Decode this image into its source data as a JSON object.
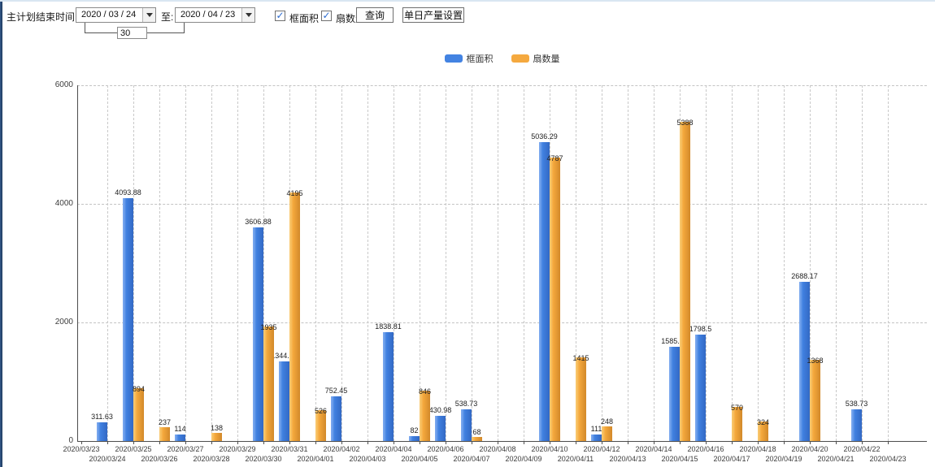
{
  "toolbar": {
    "start_label": "主计划结束时间:",
    "from_date": "2020 / 03 / 24",
    "to_label": "至:",
    "to_date": "2020 / 04 / 23",
    "interval_days": "30",
    "checkboxes": [
      {
        "label": "框面积",
        "checked": true,
        "check_glyph": "✓"
      },
      {
        "label": "扇数量",
        "checked": true,
        "check_glyph": "✓"
      }
    ],
    "query_button": "查询",
    "daily_output_button": "单日产量设置"
  },
  "legend": {
    "position": "top-center",
    "items": [
      {
        "label": "框面积",
        "color": "#4383E2"
      },
      {
        "label": "扇数量",
        "color": "#F5A93F"
      }
    ]
  },
  "chart_data": {
    "type": "bar",
    "title": "",
    "xlabel": "",
    "ylabel": "",
    "ylim": [
      0,
      6000
    ],
    "yticks": [
      0,
      2000,
      4000,
      6000
    ],
    "grid": true,
    "legend_position": "top",
    "categories": [
      "2020/03/23",
      "2020/03/24",
      "2020/03/25",
      "2020/03/26",
      "2020/03/27",
      "2020/03/28",
      "2020/03/29",
      "2020/03/30",
      "2020/03/31",
      "2020/04/01",
      "2020/04/02",
      "2020/04/03",
      "2020/04/04",
      "2020/04/05",
      "2020/04/06",
      "2020/04/07",
      "2020/04/08",
      "2020/04/09",
      "2020/04/10",
      "2020/04/11",
      "2020/04/12",
      "2020/04/13",
      "2020/04/14",
      "2020/04/15",
      "2020/04/16",
      "2020/04/17",
      "2020/04/18",
      "2020/04/19",
      "2020/04/20",
      "2020/04/21",
      "2020/04/22",
      "2020/04/23"
    ],
    "series": [
      {
        "name": "框面积",
        "color": "#4383E2",
        "values": [
          null,
          311.63,
          4093.88,
          null,
          114,
          null,
          null,
          3606.88,
          1344.95,
          null,
          752.45,
          null,
          1838.81,
          82,
          430.98,
          538.73,
          null,
          null,
          5036.29,
          null,
          111,
          null,
          null,
          1585.96,
          1798.5,
          null,
          null,
          null,
          2688.17,
          null,
          538.73,
          null
        ]
      },
      {
        "name": "扇数量",
        "color": "#F5A93F",
        "values": [
          null,
          null,
          894,
          237,
          null,
          138,
          null,
          1935,
          4195,
          526,
          null,
          null,
          null,
          846,
          null,
          68,
          null,
          null,
          4787,
          1415,
          248,
          null,
          null,
          5388,
          null,
          570,
          324,
          null,
          1368,
          null,
          null,
          null
        ]
      }
    ]
  }
}
